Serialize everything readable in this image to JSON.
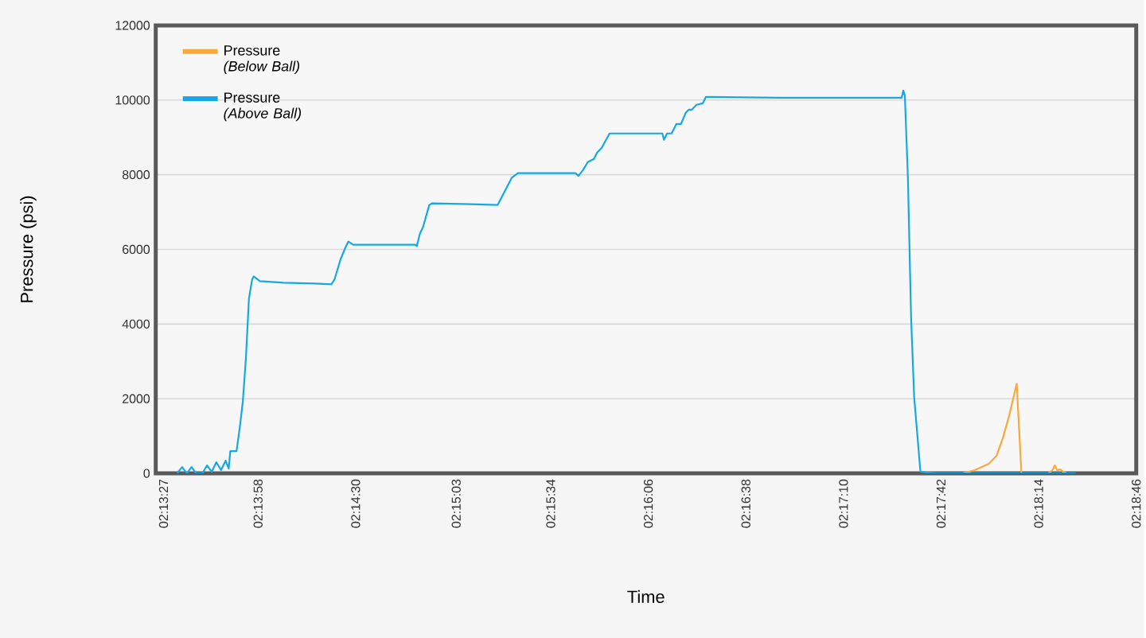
{
  "chart_data": {
    "type": "line",
    "xlabel": "Time",
    "ylabel": "Pressure (psi)",
    "xlim": [
      2.22346,
      2.31278
    ],
    "ylim": [
      0,
      12000
    ],
    "xticks": [
      {
        "value": 2.22417,
        "label": "02:13:27"
      },
      {
        "value": 2.23278,
        "label": "02:13:58"
      },
      {
        "value": 2.24167,
        "label": "02:14:30"
      },
      {
        "value": 2.25083,
        "label": "02:15:03"
      },
      {
        "value": 2.25944,
        "label": "02:15:34"
      },
      {
        "value": 2.26833,
        "label": "02:16:06"
      },
      {
        "value": 2.27722,
        "label": "02:16:38"
      },
      {
        "value": 2.28611,
        "label": "02:17:10"
      },
      {
        "value": 2.295,
        "label": "02:17:42"
      },
      {
        "value": 2.30389,
        "label": "02:18:14"
      },
      {
        "value": 2.31278,
        "label": "02:18:46"
      }
    ],
    "yticks": [
      0,
      2000,
      4000,
      6000,
      8000,
      10000,
      12000
    ],
    "grid": "y",
    "legend": "top left",
    "series": [
      {
        "name": "Pressure *(Below Ball)*",
        "color": "#f9a93a",
        "x": [
          2.29524,
          2.29694,
          2.29807,
          2.29935,
          2.30005,
          2.30062,
          2.30119,
          2.30189,
          2.30232,
          2.30473,
          2.30515,
          2.30536,
          2.30557,
          2.30586,
          2.30614,
          2.30642
        ],
        "values": [
          0,
          0,
          85,
          255,
          468,
          936,
          1532,
          2400,
          0,
          0,
          85,
          213,
          85,
          106,
          43,
          0
        ]
      },
      {
        "name": "Pressure *(Above Ball)*",
        "color": "#16a8e6",
        "x": [
          2.2254,
          2.22587,
          2.22629,
          2.22672,
          2.22714,
          2.22771,
          2.22813,
          2.22856,
          2.22898,
          2.22941,
          2.22983,
          2.23011,
          2.23025,
          2.23054,
          2.23082,
          2.2311,
          2.23139,
          2.23167,
          2.23195,
          2.23224,
          2.23238,
          2.23294,
          2.23507,
          2.2379,
          2.23946,
          2.23974,
          2.24031,
          2.24073,
          2.24101,
          2.24144,
          2.24356,
          2.2471,
          2.24724,
          2.24753,
          2.24781,
          2.24838,
          2.24866,
          2.25206,
          2.25461,
          2.25588,
          2.25645,
          2.25772,
          2.26169,
          2.26197,
          2.26239,
          2.26282,
          2.26338,
          2.26367,
          2.26409,
          2.2648,
          2.26905,
          2.26961,
          2.26976,
          2.27004,
          2.27046,
          2.27089,
          2.27131,
          2.27174,
          2.27202,
          2.2723,
          2.27273,
          2.2733,
          2.27358,
          2.274,
          2.28037,
          2.29142,
          2.29156,
          2.2917,
          2.29198,
          2.29227,
          2.29255,
          2.29312,
          2.29453,
          2.29878,
          2.30303,
          2.30727
        ],
        "values": [
          0,
          170,
          0,
          170,
          0,
          0,
          213,
          43,
          298,
          85,
          340,
          128,
          596,
          596,
          596,
          1191,
          1915,
          3064,
          4681,
          5191,
          5276,
          5149,
          5106,
          5085,
          5063,
          5191,
          5745,
          6042,
          6212,
          6127,
          6127,
          6127,
          6085,
          6425,
          6595,
          7191,
          7234,
          7212,
          7191,
          7914,
          8042,
          8042,
          8042,
          7970,
          8127,
          8340,
          8425,
          8595,
          8723,
          9106,
          9106,
          9106,
          8936,
          9106,
          9106,
          9361,
          9361,
          9659,
          9744,
          9744,
          9872,
          9914,
          10084,
          10084,
          10063,
          10063,
          10255,
          10127,
          7914,
          4170,
          2042,
          43,
          0,
          0,
          0,
          0
        ]
      }
    ]
  }
}
